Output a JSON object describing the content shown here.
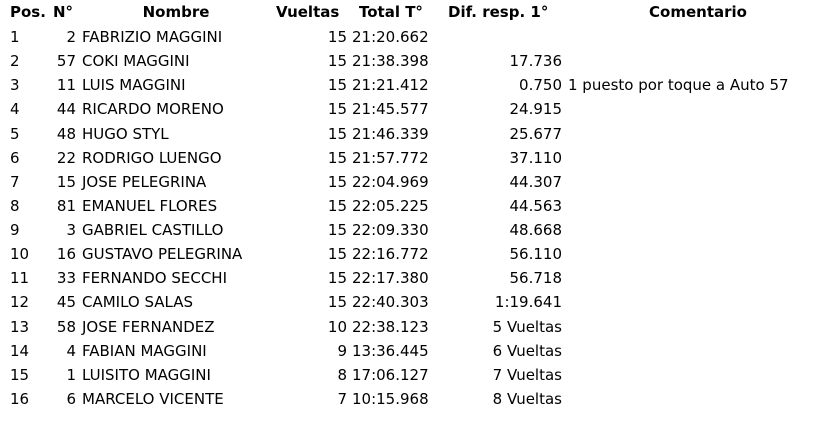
{
  "table": {
    "header": {
      "pos": "Pos.",
      "num": "N°",
      "name": "Nombre",
      "laps": "Vueltas",
      "total": "Total T°",
      "diff": "Dif. resp. 1°",
      "comment": "Comentario"
    },
    "rows": [
      {
        "pos": "1",
        "num": "2",
        "name": "FABRIZIO MAGGINI",
        "laps": "15",
        "total": "21:20.662"
      },
      {
        "pos": "2",
        "num": "57",
        "name": "COKI MAGGINI",
        "laps": "15",
        "total": "21:38.398",
        "diff": "17.736"
      },
      {
        "pos": "3",
        "num": "11",
        "name": "LUIS MAGGINI",
        "laps": "15",
        "total": "21:21.412",
        "diff": "0.750",
        "comment": "1 puesto por toque a Auto 57"
      },
      {
        "pos": "4",
        "num": "44",
        "name": "RICARDO MORENO",
        "laps": "15",
        "total": "21:45.577",
        "diff": "24.915"
      },
      {
        "pos": "5",
        "num": "48",
        "name": "HUGO STYL",
        "laps": "15",
        "total": "21:46.339",
        "diff": "25.677"
      },
      {
        "pos": "6",
        "num": "22",
        "name": "RODRIGO LUENGO",
        "laps": "15",
        "total": "21:57.772",
        "diff": "37.110"
      },
      {
        "pos": "7",
        "num": "15",
        "name": "JOSE PELEGRINA",
        "laps": "15",
        "total": "22:04.969",
        "diff": "44.307"
      },
      {
        "pos": "8",
        "num": "81",
        "name": "EMANUEL FLORES",
        "laps": "15",
        "total": "22:05.225",
        "diff": "44.563"
      },
      {
        "pos": "9",
        "num": "3",
        "name": "GABRIEL CASTILLO",
        "laps": "15",
        "total": "22:09.330",
        "diff": "48.668"
      },
      {
        "pos": "10",
        "num": "16",
        "name": "GUSTAVO PELEGRINA",
        "laps": "15",
        "total": "22:16.772",
        "diff": "56.110"
      },
      {
        "pos": "11",
        "num": "33",
        "name": "FERNANDO SECCHI",
        "laps": "15",
        "total": "22:17.380",
        "diff": "56.718"
      },
      {
        "pos": "12",
        "num": "45",
        "name": "CAMILO SALAS",
        "laps": "15",
        "total": "22:40.303",
        "diff": "1:19.641"
      },
      {
        "pos": "13",
        "num": "58",
        "name": "JOSE FERNANDEZ",
        "laps": "10",
        "total": "22:38.123",
        "diff": "5 Vueltas"
      },
      {
        "pos": "14",
        "num": "4",
        "name": "FABIAN MAGGINI",
        "laps": "9",
        "total": "13:36.445",
        "diff": "6 Vueltas"
      },
      {
        "pos": "15",
        "num": "1",
        "name": "LUISITO MAGGINI",
        "laps": "8",
        "total": "17:06.127",
        "diff": "7 Vueltas"
      },
      {
        "pos": "16",
        "num": "6",
        "name": "MARCELO VICENTE",
        "laps": "7",
        "total": "10:15.968",
        "diff": "8 Vueltas"
      }
    ]
  }
}
